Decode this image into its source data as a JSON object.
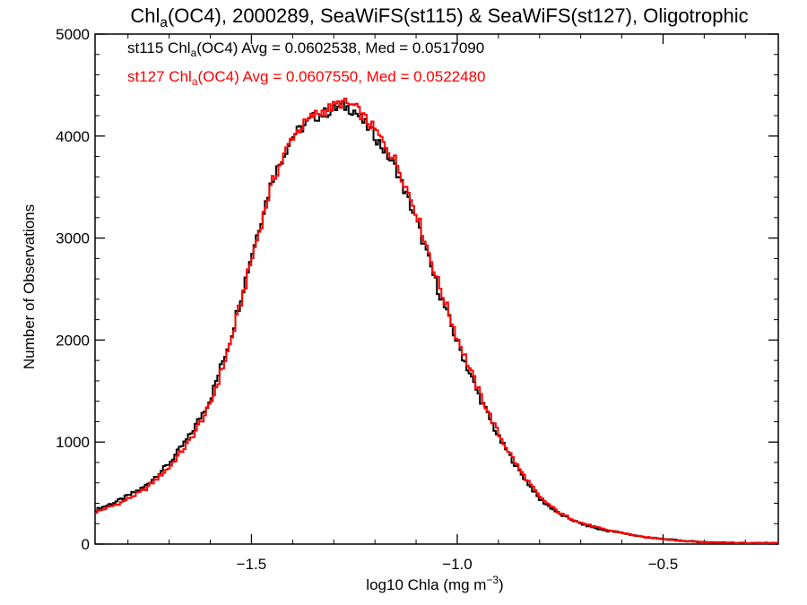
{
  "chart_data": {
    "type": "line",
    "title": {
      "prefix": "Chl",
      "sub": "a",
      "suffix": "(OC4), 2000289, SeaWiFS(st115) & SeaWiFS(st127), Oligotrophic"
    },
    "xlabel": {
      "main": "log10 Chla (mg m",
      "sup": "−3",
      "close": ")"
    },
    "ylabel": "Number of Observations",
    "xlim": [
      -1.88,
      -0.22
    ],
    "ylim": [
      0,
      5000
    ],
    "x_ticks": [
      {
        "value": -1.5,
        "label": "−1.5"
      },
      {
        "value": -1.0,
        "label": "−1.0"
      },
      {
        "value": -0.5,
        "label": "−0.5"
      }
    ],
    "y_ticks": [
      {
        "value": 0,
        "label": "0"
      },
      {
        "value": 1000,
        "label": "1000"
      },
      {
        "value": 2000,
        "label": "2000"
      },
      {
        "value": 3000,
        "label": "3000"
      },
      {
        "value": 4000,
        "label": "4000"
      },
      {
        "value": 5000,
        "label": "5000"
      }
    ],
    "legend_position": "top-left",
    "grid": false,
    "series": [
      {
        "color": "#000000",
        "legend": {
          "prefix": "st115 Chl",
          "sub": "a",
          "suffix": "(OC4) Avg = 0.0602538, Med = 0.0517090"
        },
        "x": [
          -1.88,
          -1.82,
          -1.76,
          -1.7,
          -1.65,
          -1.6,
          -1.55,
          -1.5,
          -1.45,
          -1.4,
          -1.35,
          -1.3,
          -1.28,
          -1.25,
          -1.2,
          -1.15,
          -1.1,
          -1.05,
          -1.0,
          -0.95,
          -0.9,
          -0.85,
          -0.8,
          -0.75,
          -0.7,
          -0.65,
          -0.6,
          -0.55,
          -0.5,
          -0.45,
          -0.4,
          -0.3,
          -0.22
        ],
        "y": [
          330,
          430,
          560,
          790,
          1060,
          1420,
          2030,
          2830,
          3570,
          4000,
          4180,
          4260,
          4300,
          4250,
          4000,
          3690,
          3180,
          2540,
          1980,
          1480,
          1050,
          720,
          440,
          290,
          200,
          140,
          110,
          70,
          50,
          30,
          20,
          10,
          10
        ]
      },
      {
        "color": "#ff0000",
        "legend": {
          "prefix": "st127 Chl",
          "sub": "a",
          "suffix": "(OC4) Avg = 0.0607550, Med = 0.0522480"
        },
        "x": [
          -1.88,
          -1.82,
          -1.76,
          -1.7,
          -1.65,
          -1.6,
          -1.55,
          -1.5,
          -1.45,
          -1.4,
          -1.35,
          -1.3,
          -1.28,
          -1.25,
          -1.2,
          -1.15,
          -1.1,
          -1.05,
          -1.0,
          -0.95,
          -0.9,
          -0.85,
          -0.8,
          -0.75,
          -0.7,
          -0.65,
          -0.6,
          -0.55,
          -0.5,
          -0.45,
          -0.4,
          -0.3,
          -0.22
        ],
        "y": [
          310,
          400,
          530,
          750,
          1010,
          1360,
          1980,
          2780,
          3540,
          4000,
          4200,
          4290,
          4330,
          4290,
          4060,
          3760,
          3260,
          2610,
          2030,
          1520,
          1080,
          740,
          460,
          300,
          210,
          150,
          110,
          70,
          50,
          30,
          20,
          10,
          10
        ]
      }
    ]
  }
}
